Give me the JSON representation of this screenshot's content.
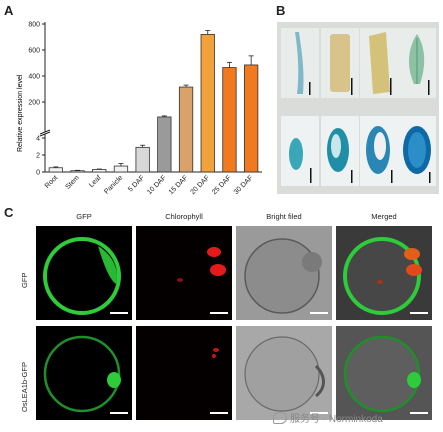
{
  "panels": {
    "A": "A",
    "B": "B",
    "C": "C"
  },
  "chart_data": {
    "type": "bar",
    "ylabel": "Relative expression level",
    "categories": [
      "Root",
      "Stem",
      "Leaf",
      "Panicle",
      "5 DAF",
      "10 DAF",
      "15 DAF",
      "20 DAF",
      "25 DAF",
      "30 DAF"
    ],
    "values": [
      0.5,
      0.15,
      0.3,
      0.7,
      2.9,
      85,
      315,
      720,
      465,
      485
    ],
    "errors": [
      0.1,
      0.05,
      0.05,
      0.3,
      0.25,
      8,
      15,
      30,
      40,
      70
    ],
    "colors": [
      "#f2f2f2",
      "#f2f2f2",
      "#f2f2f2",
      "#f2f2f2",
      "#d8d8d8",
      "#9a9a9a",
      "#d9a26a",
      "#f2a23a",
      "#ef7a20",
      "#ef7a20"
    ],
    "axis_break": true,
    "lower_ticks": [
      "0",
      "2",
      "4"
    ],
    "upper_ticks": [
      "200",
      "400",
      "600",
      "800"
    ]
  },
  "panelC": {
    "columns": [
      "GFP",
      "Chlorophyll",
      "Bright filed",
      "Merged"
    ],
    "rows": [
      "GFP",
      "OsLEA1b-GFP"
    ]
  },
  "watermark": "服务号 · Norminkoda"
}
